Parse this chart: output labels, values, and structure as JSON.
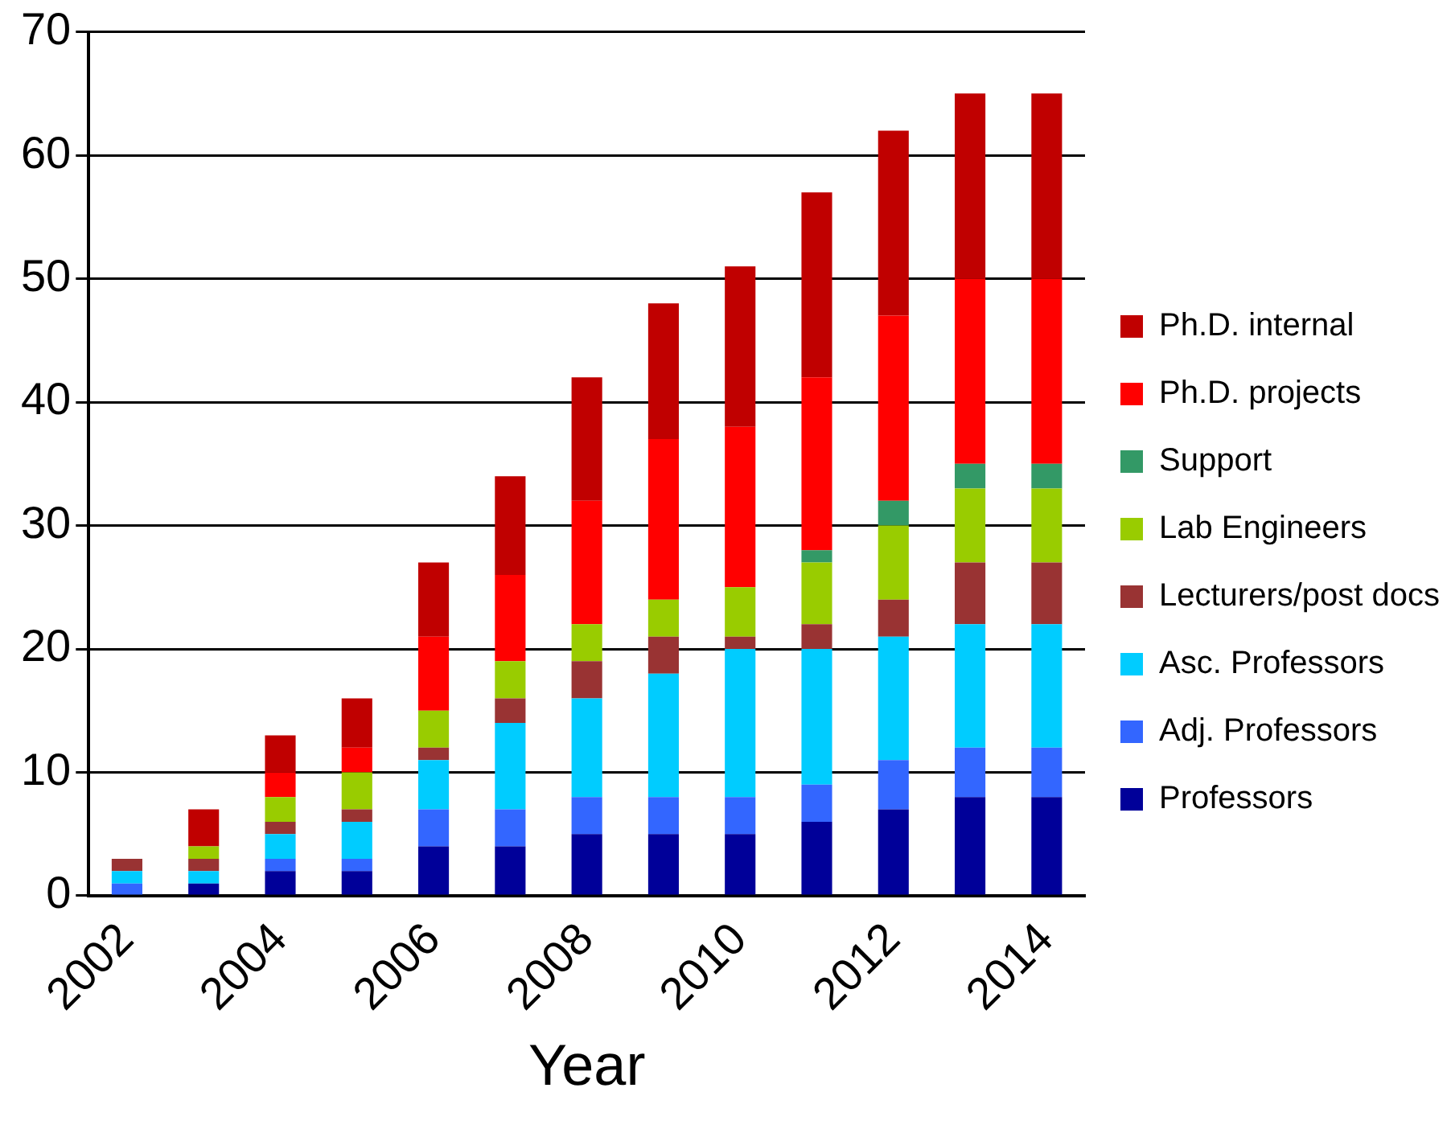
{
  "chart_data": {
    "type": "bar",
    "stacked": true,
    "xlabel": "Year",
    "categories": [
      "2002",
      null,
      "2004",
      null,
      "2006",
      null,
      "2008",
      null,
      "2010",
      null,
      "2012",
      null,
      "2014"
    ],
    "series": [
      {
        "name": "Professors",
        "color": "#000099",
        "values": [
          0,
          1,
          2,
          2,
          4,
          4,
          5,
          5,
          5,
          6,
          7,
          8,
          8
        ]
      },
      {
        "name": "Adj. Professors",
        "color": "#3366ff",
        "values": [
          1,
          0,
          1,
          1,
          3,
          3,
          3,
          3,
          3,
          3,
          4,
          4,
          4
        ]
      },
      {
        "name": "Asc. Professors",
        "color": "#00ccff",
        "values": [
          1,
          1,
          2,
          3,
          4,
          7,
          8,
          10,
          12,
          11,
          10,
          10,
          10
        ]
      },
      {
        "name": "Lecturers/post docs",
        "color": "#993333",
        "values": [
          1,
          1,
          1,
          1,
          1,
          2,
          3,
          3,
          1,
          2,
          3,
          5,
          5
        ]
      },
      {
        "name": "Lab Engineers",
        "color": "#99cc00",
        "values": [
          0,
          1,
          2,
          3,
          3,
          3,
          3,
          3,
          4,
          5,
          6,
          6,
          6
        ]
      },
      {
        "name": "Support",
        "color": "#339966",
        "values": [
          0,
          0,
          0,
          0,
          0,
          0,
          0,
          0,
          0,
          1,
          2,
          2,
          2
        ]
      },
      {
        "name": "Ph.D. projects",
        "color": "#ff0000",
        "values": [
          0,
          0,
          2,
          2,
          6,
          7,
          10,
          13,
          13,
          14,
          15,
          15,
          15
        ]
      },
      {
        "name": "Ph.D. internal",
        "color": "#c00000",
        "values": [
          0,
          3,
          3,
          4,
          6,
          8,
          10,
          11,
          13,
          15,
          15,
          15,
          15
        ]
      }
    ],
    "ylim": [
      0,
      70
    ],
    "yticks": [
      0,
      10,
      20,
      30,
      40,
      50,
      60,
      70
    ],
    "grid": "y",
    "legend": "right"
  }
}
